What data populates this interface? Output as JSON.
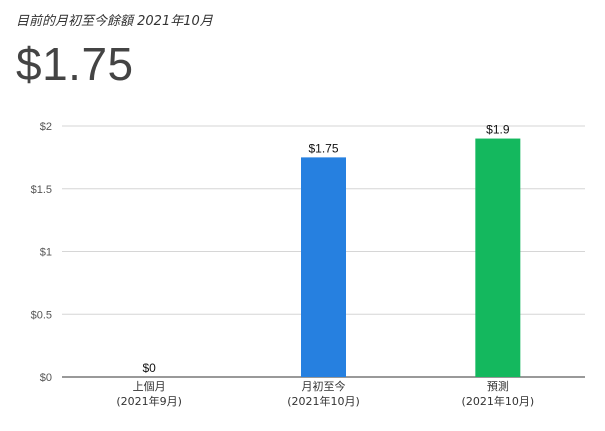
{
  "header": {
    "subtitle": "目前的月初至今餘額 2021年10月",
    "value": "$1.75"
  },
  "chart_data": {
    "type": "bar",
    "categories": [
      {
        "label": "上個月",
        "sublabel": "(2021年9月)"
      },
      {
        "label": "月初至今",
        "sublabel": "(2021年10月)"
      },
      {
        "label": "預測",
        "sublabel": "(2021年10月)"
      }
    ],
    "values": [
      0,
      1.75,
      1.9
    ],
    "value_labels": [
      "$0",
      "$1.75",
      "$1.9"
    ],
    "bar_colors": [
      "#cccccc",
      "#2680e0",
      "#14b85e"
    ],
    "ylim": [
      0,
      2
    ],
    "yticks": [
      0,
      0.5,
      1,
      1.5,
      2
    ],
    "ytick_labels": [
      "$0",
      "$0.5",
      "$1",
      "$1.5",
      "$2"
    ],
    "grid": true,
    "legend": "none"
  }
}
